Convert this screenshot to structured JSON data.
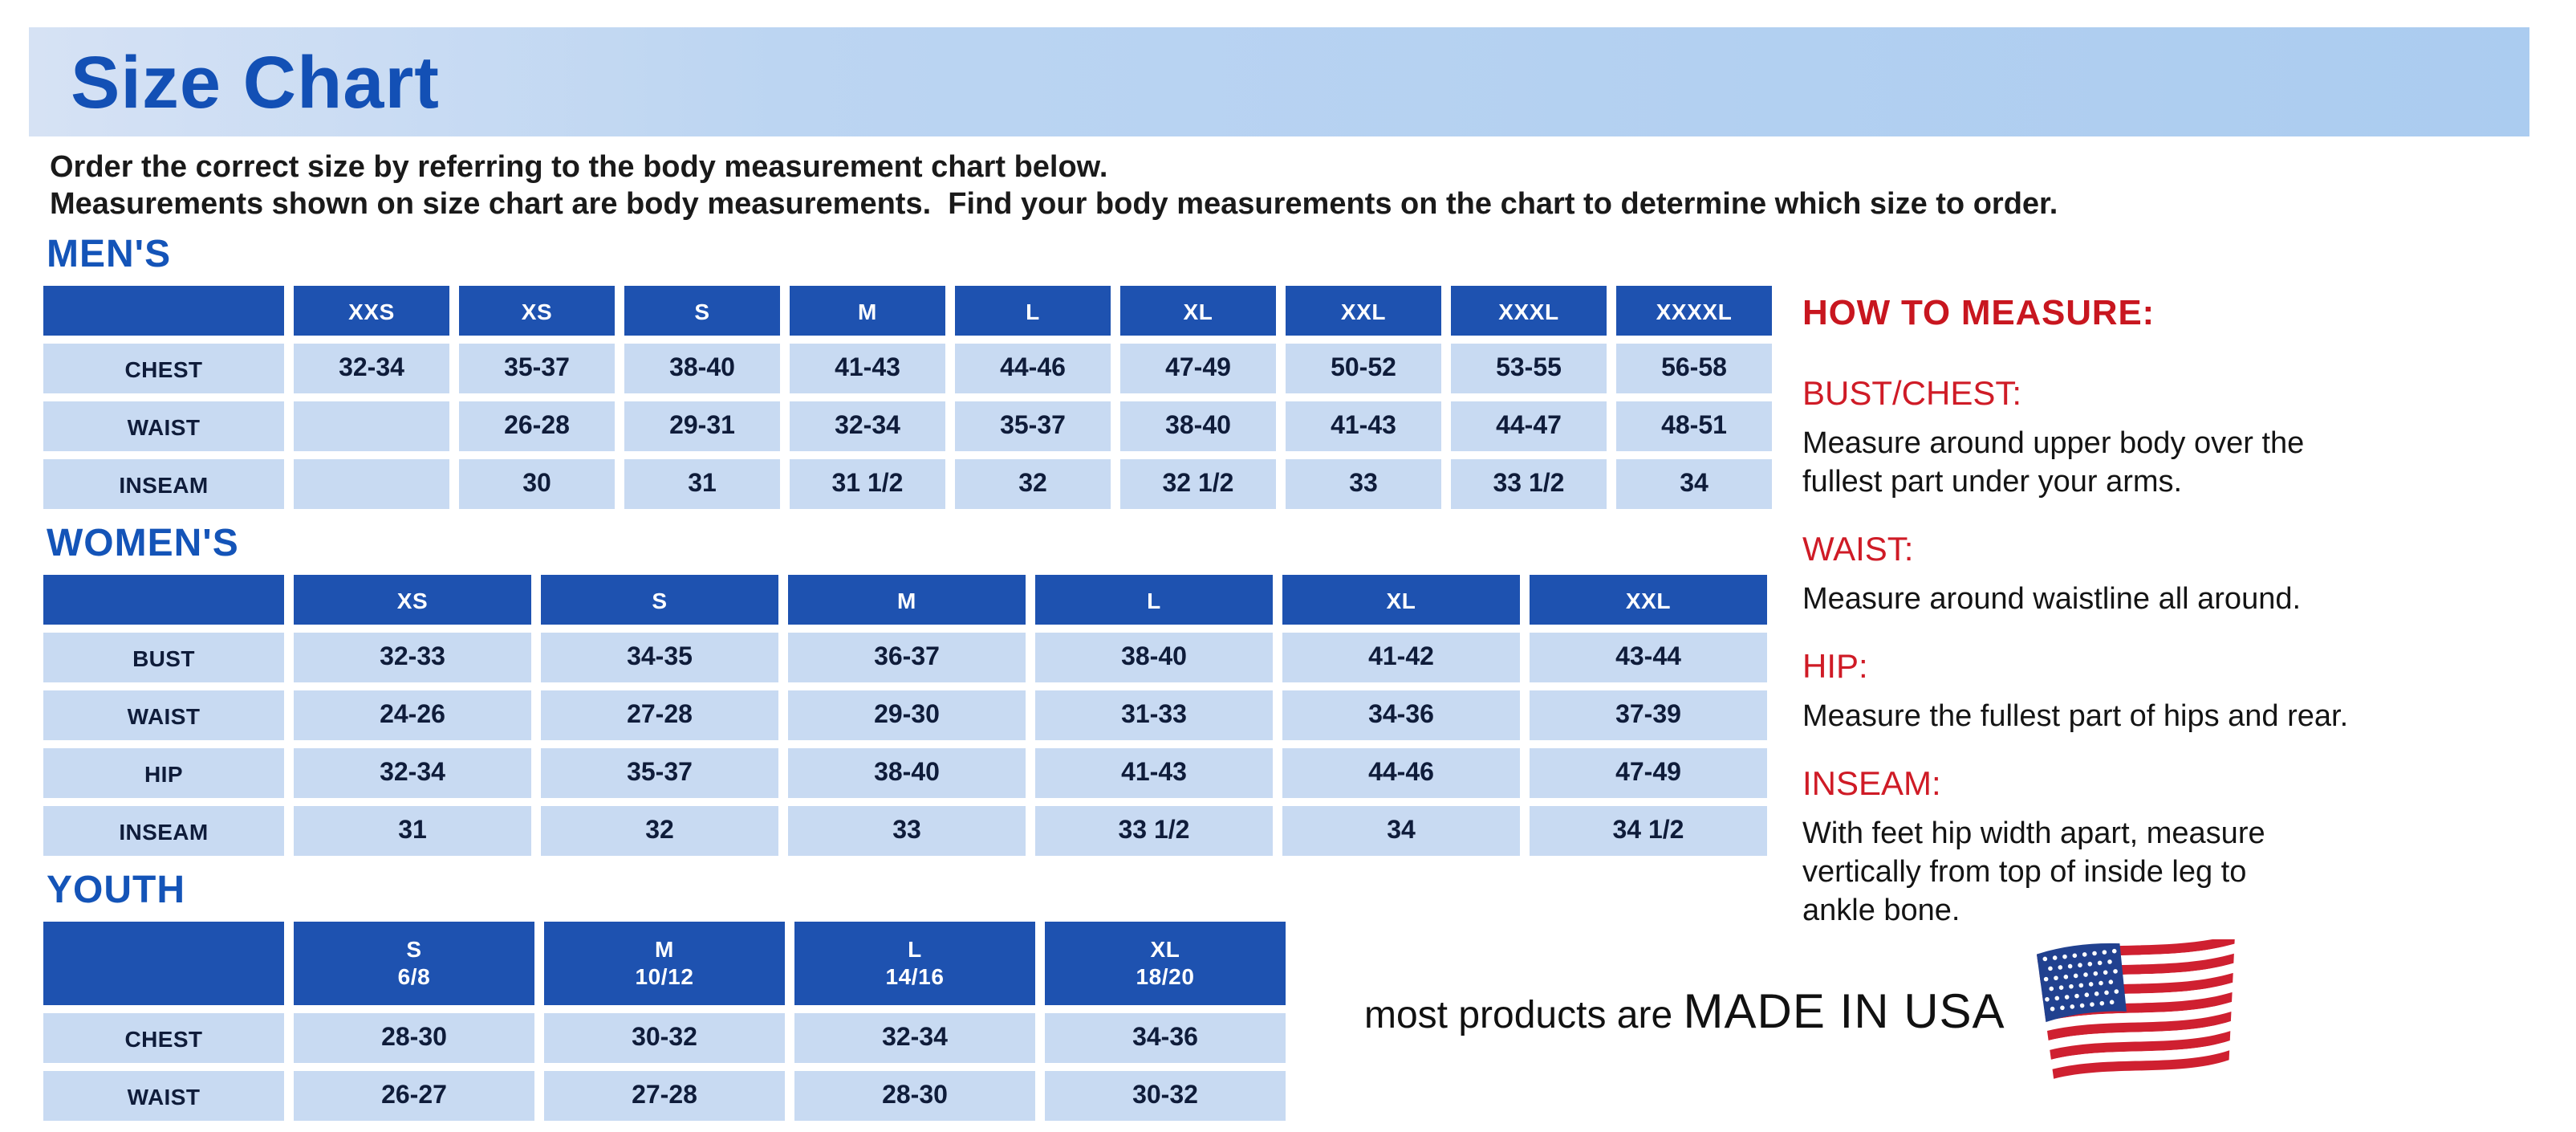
{
  "page": {
    "title": "Size Chart",
    "intro_line1": "Order the correct size by referring to the body measurement chart below.",
    "intro_line2": "Measurements shown on size chart are body measurements.  Find your body measurements on the chart to determine which size to order."
  },
  "colors": {
    "banner_bg": "#b9d4f1",
    "heading_blue": "#1454b8",
    "title_blue": "#1350b5",
    "table_header_bg": "#1e52b0",
    "table_cell_bg": "#c8daf2",
    "table_text": "#0f1c3a",
    "accent_red": "#c8161f",
    "flag_blue": "#21418f",
    "flag_red": "#cf2030"
  },
  "tables": {
    "mens": {
      "heading": "MEN'S",
      "sizes": [
        "XXS",
        "XS",
        "S",
        "M",
        "L",
        "XL",
        "XXL",
        "XXXL",
        "XXXXL"
      ],
      "rows": [
        {
          "label": "CHEST",
          "values": [
            "32-34",
            "35-37",
            "38-40",
            "41-43",
            "44-46",
            "47-49",
            "50-52",
            "53-55",
            "56-58"
          ]
        },
        {
          "label": "WAIST",
          "values": [
            "",
            "26-28",
            "29-31",
            "32-34",
            "35-37",
            "38-40",
            "41-43",
            "44-47",
            "48-51"
          ]
        },
        {
          "label": "INSEAM",
          "values": [
            "",
            "30",
            "31",
            "31 1/2",
            "32",
            "32 1/2",
            "33",
            "33 1/2",
            "34"
          ]
        }
      ]
    },
    "womens": {
      "heading": "WOMEN'S",
      "sizes": [
        "XS",
        "S",
        "M",
        "L",
        "XL",
        "XXL"
      ],
      "rows": [
        {
          "label": "BUST",
          "values": [
            "32-33",
            "34-35",
            "36-37",
            "38-40",
            "41-42",
            "43-44"
          ]
        },
        {
          "label": "WAIST",
          "values": [
            "24-26",
            "27-28",
            "29-30",
            "31-33",
            "34-36",
            "37-39"
          ]
        },
        {
          "label": "HIP",
          "values": [
            "32-34",
            "35-37",
            "38-40",
            "41-43",
            "44-46",
            "47-49"
          ]
        },
        {
          "label": "INSEAM",
          "values": [
            "31",
            "32",
            "33",
            "33 1/2",
            "34",
            "34 1/2"
          ]
        }
      ]
    },
    "youth": {
      "heading": "YOUTH",
      "sizes": [
        {
          "size": "S",
          "range": "6/8"
        },
        {
          "size": "M",
          "range": "10/12"
        },
        {
          "size": "L",
          "range": "14/16"
        },
        {
          "size": "XL",
          "range": "18/20"
        }
      ],
      "rows": [
        {
          "label": "CHEST",
          "values": [
            "28-30",
            "30-32",
            "32-34",
            "34-36"
          ]
        },
        {
          "label": "WAIST",
          "values": [
            "26-27",
            "27-28",
            "28-30",
            "30-32"
          ]
        }
      ]
    }
  },
  "how_to_measure": {
    "heading": "HOW TO MEASURE:",
    "sections": [
      {
        "label": "BUST/CHEST:",
        "text": "Measure around upper body over the\nfullest part under your arms."
      },
      {
        "label": "WAIST:",
        "text": "Measure around waistline all around."
      },
      {
        "label": "HIP:",
        "text": "Measure the fullest part of hips and rear."
      },
      {
        "label": "INSEAM:",
        "text": "With feet hip width apart, measure\nvertically from top of inside leg to\nankle bone."
      }
    ]
  },
  "footer": {
    "prefix": "most products are ",
    "emphasis": "MADE IN USA",
    "flag_icon": "us-flag-icon"
  }
}
